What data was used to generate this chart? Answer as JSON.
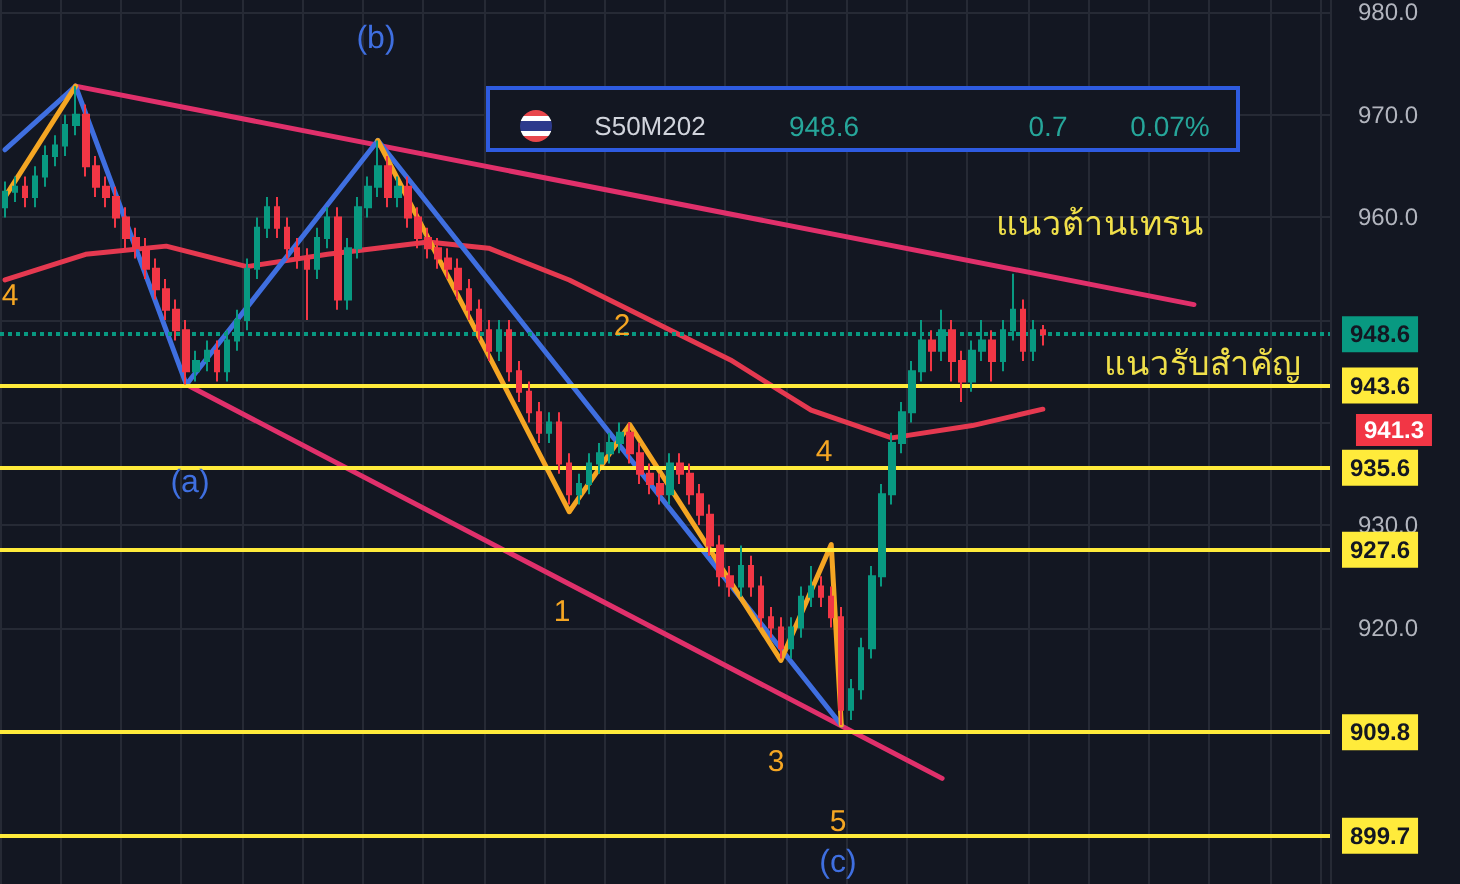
{
  "chart_data": {
    "type": "candlestick",
    "categories": [
      null,
      null,
      null,
      null,
      null,
      null,
      null,
      null,
      null,
      null,
      null,
      null,
      null,
      null,
      null,
      null,
      null,
      null,
      null,
      null,
      null,
      null,
      null,
      null,
      null,
      null,
      null,
      null,
      null,
      null,
      null,
      null,
      null,
      null,
      null,
      null,
      null,
      null,
      null,
      null,
      null,
      null,
      null,
      null,
      null,
      null,
      null,
      null,
      null,
      null,
      null,
      null,
      null,
      null,
      null,
      null,
      null,
      null,
      null,
      null,
      null,
      null,
      null,
      null,
      null,
      null,
      null,
      null,
      null,
      null,
      null,
      null,
      null,
      null,
      null,
      null,
      null,
      null,
      null,
      null,
      null,
      null,
      null,
      null,
      null,
      null,
      null,
      null,
      null,
      null,
      null,
      null,
      null,
      null,
      null,
      null,
      null,
      null,
      null,
      null,
      null,
      null,
      null,
      null,
      null,
      null,
      null,
      null,
      null,
      null,
      null,
      null,
      null,
      null,
      null,
      null,
      null,
      null,
      null,
      null,
      null,
      null,
      null,
      null,
      null,
      null,
      null,
      null,
      null,
      null,
      null,
      null
    ],
    "ylim": [
      895,
      981.2
    ],
    "yticks": [
      {
        "value": 920,
        "label": "920.0"
      },
      {
        "value": 930,
        "label": "930.0"
      },
      {
        "value": 940,
        "label": null
      },
      {
        "value": 950,
        "label": null
      },
      {
        "value": 960,
        "label": "960.0"
      },
      {
        "value": 970,
        "label": "970.0"
      },
      {
        "value": 980,
        "label": "980.0"
      }
    ],
    "grid": true,
    "series": [
      {
        "colors": [
          "#089981",
          "#089981",
          "#f23645",
          "#089981",
          "#089981",
          "#089981",
          "#089981",
          "#089981",
          "#f23645",
          "#f23645",
          "#f23645",
          "#f23645",
          "#f23645",
          "#f23645",
          "#f23645",
          "#f23645",
          "#f23645",
          "#f23645",
          "#f23645",
          "#089981",
          "#089981",
          "#f23645",
          "#089981",
          "#089981",
          "#089981",
          "#089981",
          "#089981",
          "#f23645",
          "#f23645",
          "#f23645",
          "#f23645",
          "#089981",
          "#089981",
          "#f23645",
          "#089981",
          "#089981",
          "#089981",
          "#089981",
          "#f23645",
          "#089981",
          "#f23645",
          "#f23645",
          "#f23645",
          "#f23645",
          "#f23645",
          "#f23645",
          "#f23645",
          "#f23645",
          "#f23645",
          "#089981",
          "#f23645",
          "#f23645",
          "#f23645",
          "#f23645",
          "#089981",
          "#f23645",
          "#f23645",
          "#089981",
          "#089981",
          "#089981",
          "#089981",
          "#089981",
          "#f23645",
          "#f23645",
          "#f23645",
          "#f23645",
          "#089981",
          "#f23645",
          "#f23645",
          "#f23645",
          "#f23645",
          "#f23645",
          "#f23645",
          "#089981",
          "#f23645",
          "#f23645",
          "#f23645",
          "#f23645",
          "#089981",
          "#089981",
          "#089981",
          "#f23645",
          "#f23645",
          "#f23645",
          "#089981",
          "#089981",
          "#089981",
          "#089981",
          "#089981",
          "#089981",
          "#089981",
          "#089981",
          "#f23645",
          "#089981",
          "#f23645",
          "#f23645",
          "#089981",
          "#089981",
          "#f23645",
          "#089981",
          "#089981",
          "#f23645",
          "#089981",
          "#f23645",
          null,
          null,
          null,
          null,
          null,
          null,
          null,
          null,
          null,
          null,
          null,
          null,
          null,
          null,
          null,
          null,
          null,
          null,
          null,
          null,
          null,
          null,
          null,
          null,
          null,
          null,
          null,
          null
        ],
        "ohlc": [
          [
            961,
            963.5,
            960,
            962.5
          ],
          [
            962.5,
            964,
            961.5,
            963
          ],
          [
            963,
            964,
            961,
            962
          ],
          [
            962,
            965,
            961,
            964
          ],
          [
            964,
            967,
            963,
            966
          ],
          [
            966,
            968,
            965,
            967
          ],
          [
            967,
            970,
            966,
            969
          ],
          [
            969,
            972.8,
            968,
            970
          ],
          [
            970,
            971,
            964,
            965
          ],
          [
            965,
            966,
            962,
            963
          ],
          [
            963,
            964,
            961,
            962
          ],
          [
            962,
            963,
            959,
            960
          ],
          [
            960,
            961,
            957,
            958
          ],
          [
            958,
            959,
            956,
            957
          ],
          [
            957,
            958,
            954,
            955
          ],
          [
            955,
            956,
            952,
            953
          ],
          [
            953,
            954,
            950,
            951
          ],
          [
            951,
            952,
            948,
            949
          ],
          [
            949,
            950,
            943.7,
            945
          ],
          [
            945,
            947,
            944,
            946
          ],
          [
            946,
            948,
            945,
            947
          ],
          [
            947,
            948,
            944,
            945
          ],
          [
            945,
            949,
            944,
            948
          ],
          [
            948,
            951,
            947,
            950
          ],
          [
            950,
            956,
            949,
            955
          ],
          [
            955,
            960,
            954,
            959
          ],
          [
            959,
            962,
            958,
            961
          ],
          [
            961,
            962,
            958,
            959
          ],
          [
            959,
            960,
            956,
            957
          ],
          [
            957,
            958,
            955,
            956
          ],
          [
            956,
            957,
            950,
            955
          ],
          [
            955,
            959,
            954,
            958
          ],
          [
            958,
            961,
            957,
            960
          ],
          [
            960,
            961,
            951,
            952
          ],
          [
            952,
            958,
            951,
            957
          ],
          [
            957,
            962,
            956,
            961
          ],
          [
            961,
            964,
            960,
            963
          ],
          [
            963,
            967.5,
            962,
            965
          ],
          [
            965,
            966,
            961,
            962
          ],
          [
            962,
            964,
            961,
            963
          ],
          [
            963,
            964,
            959,
            960
          ],
          [
            960,
            961,
            957,
            958
          ],
          [
            958,
            959,
            956,
            957
          ],
          [
            957,
            958,
            955,
            956
          ],
          [
            956,
            957,
            954,
            955
          ],
          [
            955,
            956,
            952,
            953
          ],
          [
            953,
            954,
            950,
            951
          ],
          [
            951,
            952,
            948,
            949
          ],
          [
            949,
            950,
            946,
            947
          ],
          [
            947,
            950,
            946,
            949
          ],
          [
            949,
            950,
            944,
            945
          ],
          [
            945,
            946,
            942,
            943
          ],
          [
            943,
            944,
            940,
            941
          ],
          [
            941,
            942,
            938,
            939
          ],
          [
            939,
            941,
            938,
            940
          ],
          [
            940,
            941,
            935,
            936
          ],
          [
            936,
            937,
            932,
            933
          ],
          [
            933,
            935,
            932,
            934
          ],
          [
            934,
            937,
            933,
            936
          ],
          [
            936,
            938,
            935,
            937
          ],
          [
            937,
            939,
            936,
            938
          ],
          [
            938,
            940,
            937,
            939
          ],
          [
            939,
            940,
            936,
            937
          ],
          [
            937,
            938,
            934,
            935
          ],
          [
            935,
            936,
            933,
            934
          ],
          [
            934,
            935,
            932,
            933
          ],
          [
            933,
            937,
            932,
            936
          ],
          [
            936,
            937,
            934,
            935
          ],
          [
            935,
            936,
            932,
            933
          ],
          [
            933,
            934,
            930,
            931
          ],
          [
            931,
            932,
            927,
            928
          ],
          [
            928,
            929,
            924,
            925
          ],
          [
            925,
            926,
            923,
            924
          ],
          [
            924,
            928,
            923,
            926
          ],
          [
            926,
            927,
            923,
            924
          ],
          [
            924,
            925,
            920,
            921
          ],
          [
            921,
            922,
            919,
            920
          ],
          [
            920,
            921,
            917,
            918
          ],
          [
            918,
            921,
            917,
            920
          ],
          [
            920,
            924,
            919,
            923
          ],
          [
            923,
            926,
            922,
            924
          ],
          [
            924,
            925,
            922,
            923
          ],
          [
            923,
            924,
            920,
            921
          ],
          [
            921,
            922,
            910.5,
            912
          ],
          [
            912,
            915,
            911,
            914
          ],
          [
            914,
            919,
            913,
            918
          ],
          [
            918,
            926,
            917,
            925
          ],
          [
            925,
            934,
            924,
            933
          ],
          [
            933,
            939,
            932,
            938
          ],
          [
            938,
            942,
            937,
            941
          ],
          [
            941,
            946,
            940,
            945
          ],
          [
            945,
            950,
            944,
            948
          ],
          [
            948,
            949,
            945,
            947
          ],
          [
            947,
            951,
            946,
            949
          ],
          [
            949,
            950,
            944,
            946
          ],
          [
            946,
            947,
            942,
            944
          ],
          [
            944,
            948,
            943,
            947
          ],
          [
            947,
            950,
            946,
            948
          ],
          [
            948,
            949,
            944,
            946
          ],
          [
            946,
            950,
            945,
            949
          ],
          [
            949,
            954.5,
            948,
            951
          ],
          [
            951,
            952,
            946,
            947
          ],
          [
            947,
            950,
            946,
            949
          ],
          [
            949,
            949.5,
            947.5,
            948.6
          ],
          null,
          null,
          null,
          null,
          null,
          null,
          null,
          null,
          null,
          null,
          null,
          null,
          null,
          null,
          null,
          null,
          null,
          null,
          null,
          null,
          null,
          null,
          null,
          null,
          null,
          null,
          null,
          null
        ]
      },
      {
        "type": "line",
        "color": "#e0306b",
        "values": [
          null,
          null,
          null,
          null,
          null,
          null,
          null,
          972.8,
          null,
          null,
          null,
          null,
          null,
          null,
          null,
          null,
          null,
          null,
          null,
          null,
          null,
          null,
          null,
          null,
          null,
          null,
          null,
          null,
          null,
          null,
          null,
          null,
          null,
          null,
          null,
          null,
          null,
          null,
          null,
          null,
          null,
          null,
          null,
          null,
          null,
          null,
          null,
          null,
          null,
          null,
          null,
          null,
          null,
          null,
          null,
          null,
          null,
          null,
          null,
          null,
          null,
          null,
          null,
          null,
          null,
          null,
          null,
          null,
          null,
          null,
          null,
          null,
          null,
          null,
          null,
          null,
          null,
          null,
          null,
          null,
          null,
          null,
          null,
          null,
          null,
          null,
          null,
          null,
          null,
          null,
          null,
          null,
          null,
          null,
          null,
          null,
          null,
          null,
          null,
          null,
          null,
          null,
          null,
          null,
          null,
          null,
          null,
          null,
          null,
          null,
          null,
          null,
          null,
          null,
          null,
          null,
          null,
          null,
          951.5,
          null,
          null,
          null,
          null,
          null,
          null,
          null,
          null,
          null,
          null,
          null,
          null,
          null
        ]
      },
      {
        "type": "line",
        "color": "#e0306b",
        "values": [
          null,
          null,
          null,
          null,
          null,
          null,
          null,
          null,
          null,
          null,
          null,
          null,
          null,
          null,
          null,
          null,
          null,
          null,
          943.7,
          null,
          null,
          null,
          null,
          null,
          null,
          null,
          null,
          null,
          null,
          null,
          null,
          null,
          null,
          null,
          null,
          null,
          null,
          null,
          null,
          null,
          null,
          null,
          null,
          null,
          null,
          null,
          null,
          null,
          null,
          null,
          null,
          null,
          null,
          null,
          null,
          null,
          null,
          null,
          null,
          null,
          null,
          null,
          null,
          null,
          null,
          null,
          null,
          null,
          null,
          null,
          null,
          null,
          null,
          null,
          null,
          null,
          null,
          null,
          null,
          null,
          null,
          null,
          null,
          null,
          null,
          null,
          null,
          null,
          null,
          null,
          null,
          null,
          null,
          905.3,
          null,
          null,
          null,
          null,
          null,
          null,
          null,
          null,
          null,
          null,
          null,
          null,
          null,
          null,
          null,
          null,
          null,
          null,
          null,
          null,
          null,
          null,
          null,
          null,
          null,
          null,
          null,
          null,
          null,
          null,
          null,
          null,
          null,
          null,
          null,
          null,
          null,
          null
        ]
      },
      {
        "type": "line",
        "color": "#e53950",
        "values": [
          953.9,
          null,
          null,
          null,
          null,
          null,
          null,
          null,
          956.4,
          null,
          null,
          null,
          null,
          null,
          null,
          null,
          957.2,
          null,
          null,
          null,
          null,
          null,
          null,
          null,
          955.2,
          null,
          null,
          null,
          null,
          null,
          null,
          null,
          956.4,
          null,
          null,
          null,
          null,
          null,
          null,
          null,
          null,
          null,
          957.6,
          null,
          null,
          null,
          null,
          null,
          957,
          null,
          null,
          null,
          null,
          null,
          null,
          null,
          953.9,
          null,
          null,
          null,
          null,
          null,
          null,
          null,
          950,
          null,
          null,
          null,
          null,
          null,
          null,
          null,
          946.1,
          null,
          null,
          null,
          null,
          null,
          null,
          null,
          941.2,
          null,
          null,
          null,
          null,
          null,
          null,
          null,
          938.5,
          null,
          null,
          null,
          null,
          null,
          null,
          null,
          939.7,
          null,
          null,
          null,
          null,
          null,
          null,
          941.3,
          null,
          null,
          null,
          null,
          null,
          null,
          null,
          null,
          null,
          null,
          null,
          null,
          null,
          null,
          null,
          null,
          null,
          null,
          null,
          null,
          null,
          null,
          null,
          null,
          null,
          null,
          null,
          null
        ]
      },
      {
        "type": "line",
        "color": "#3f6fe0",
        "values": [
          966.6,
          null,
          null,
          null,
          null,
          null,
          null,
          972.8,
          null,
          null,
          null,
          null,
          null,
          null,
          null,
          null,
          null,
          null,
          943.7,
          null,
          null,
          null,
          null,
          null,
          null,
          null,
          null,
          null,
          null,
          null,
          null,
          null,
          null,
          null,
          null,
          null,
          null,
          967.5,
          null,
          null,
          null,
          null,
          null,
          null,
          null,
          null,
          null,
          null,
          null,
          null,
          null,
          null,
          null,
          null,
          null,
          null,
          null,
          null,
          null,
          null,
          null,
          null,
          null,
          null,
          null,
          null,
          null,
          null,
          null,
          null,
          null,
          null,
          null,
          null,
          null,
          null,
          null,
          null,
          null,
          null,
          null,
          null,
          null,
          910.5,
          null,
          null,
          null,
          null,
          null,
          null,
          null,
          null,
          null,
          null,
          null,
          null,
          null,
          null,
          null,
          null,
          null,
          null,
          null,
          null,
          null,
          null,
          null,
          null,
          null,
          null,
          null,
          null,
          null,
          null,
          null,
          null,
          null,
          null,
          null,
          null,
          null,
          null,
          null,
          null,
          null,
          null,
          null,
          null,
          null,
          null,
          null,
          null
        ]
      },
      {
        "type": "line",
        "color": "#f5a623",
        "values": [
          962,
          null,
          null,
          null,
          null,
          null,
          null,
          972.8,
          null,
          null,
          null,
          null,
          null,
          null,
          null,
          null,
          null,
          null,
          null,
          null,
          null,
          null,
          null,
          null,
          null,
          null,
          null,
          null,
          null,
          null,
          null,
          null,
          null,
          null,
          null,
          null,
          null,
          null,
          null,
          null,
          null,
          null,
          null,
          null,
          null,
          null,
          null,
          null,
          null,
          null,
          null,
          null,
          null,
          null,
          null,
          null,
          null,
          null,
          null,
          null,
          null,
          null,
          null,
          null,
          null,
          null,
          null,
          null,
          null,
          null,
          null,
          null,
          null,
          null,
          null,
          null,
          null,
          null,
          null,
          null,
          null,
          null,
          null,
          null,
          null,
          null,
          null,
          null,
          null,
          null,
          null,
          null,
          null,
          null,
          null,
          null,
          null,
          null,
          null,
          null,
          null,
          null,
          null,
          null,
          null,
          null,
          null,
          null,
          null,
          null,
          null,
          null,
          null,
          null,
          null,
          null,
          null,
          null,
          null,
          null,
          null,
          null,
          null,
          null,
          null,
          null,
          null,
          null,
          null,
          null,
          null,
          null
        ]
      },
      {
        "type": "line",
        "color": "#f5a623",
        "values": [
          null,
          null,
          null,
          null,
          null,
          null,
          null,
          null,
          null,
          null,
          null,
          null,
          null,
          null,
          null,
          null,
          null,
          null,
          null,
          null,
          null,
          null,
          null,
          null,
          null,
          null,
          null,
          null,
          null,
          null,
          null,
          null,
          null,
          null,
          null,
          null,
          null,
          967.5,
          null,
          null,
          null,
          null,
          null,
          null,
          null,
          null,
          null,
          null,
          null,
          null,
          null,
          null,
          null,
          null,
          null,
          null,
          931.3,
          null,
          null,
          null,
          null,
          null,
          939.8,
          null,
          null,
          null,
          null,
          null,
          null,
          null,
          null,
          null,
          null,
          null,
          null,
          null,
          null,
          916.8,
          null,
          null,
          null,
          null,
          928.1,
          910.5,
          null,
          null,
          null,
          null,
          null,
          null,
          null,
          null,
          null,
          null,
          null,
          null,
          null,
          null,
          null,
          null,
          null,
          null,
          null,
          null,
          null,
          null,
          null,
          null,
          null,
          null,
          null,
          null,
          null,
          null,
          null,
          null,
          null,
          null,
          null,
          null,
          null,
          null,
          null,
          null,
          null,
          null,
          null,
          null,
          null,
          null,
          null,
          null
        ]
      }
    ],
    "ref_lines": [
      {
        "axis": "y",
        "value": 948.6,
        "label": "948.6",
        "color": "#089981",
        "line_style": "dotted"
      },
      {
        "axis": "y",
        "value": 943.6,
        "label": "943.6",
        "color": "#ffeb3b"
      },
      {
        "axis": "y",
        "value": 935.6,
        "label": "935.6",
        "color": "#ffeb3b"
      },
      {
        "axis": "y",
        "value": 927.6,
        "label": "927.6",
        "color": "#ffeb3b"
      },
      {
        "axis": "y",
        "value": 909.8,
        "label": "909.8",
        "color": "#ffeb3b"
      },
      {
        "axis": "y",
        "value": 899.7,
        "label": "899.7",
        "color": "#ffeb3b"
      }
    ],
    "annotations": [
      "(b)",
      "(a)",
      "(c)",
      "1",
      "2",
      "3",
      "4",
      "5",
      "4",
      "แนวต้านเทรน",
      "แนวรับสำคัญ",
      "S50M202",
      "948.6",
      "0.7",
      "0.07%",
      "941.3"
    ]
  }
}
